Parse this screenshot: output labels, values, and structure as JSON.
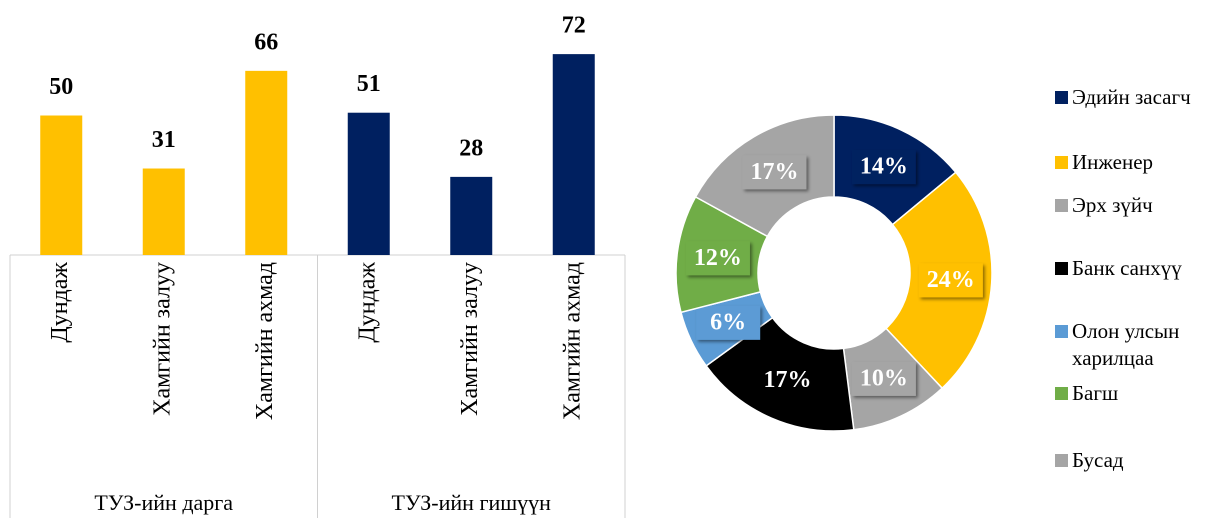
{
  "chart_data": [
    {
      "type": "bar",
      "groups": [
        {
          "name": "ТУЗ-ийн дарга",
          "color": "#ffc000",
          "categories": [
            "Дундаж",
            "Хамгийн залуу",
            "Хамгийн ахмад"
          ],
          "values": [
            50,
            31,
            66
          ]
        },
        {
          "name": "ТУЗ-ийн гишүүн",
          "color": "#002060",
          "categories": [
            "Дундаж",
            "Хамгийн залуу",
            "Хамгийн ахмад"
          ],
          "values": [
            51,
            28,
            72
          ]
        }
      ]
    },
    {
      "type": "pie",
      "categories": [
        "Эдийн засагч",
        "Инженер",
        "Эрх зүйч",
        "Банк санхүү",
        "Олон улсын харилцаа",
        "Багш",
        "Бусад"
      ],
      "values": [
        14,
        24,
        10,
        17,
        6,
        12,
        17
      ],
      "value_labels": [
        "14%",
        "24%",
        "10%",
        "17%",
        "6%",
        "12%",
        "17%"
      ],
      "colors": [
        "#002060",
        "#ffc000",
        "#a5a5a5",
        "#000000",
        "#5b9bd5",
        "#70ad47",
        "#a5a5a5"
      ]
    }
  ]
}
